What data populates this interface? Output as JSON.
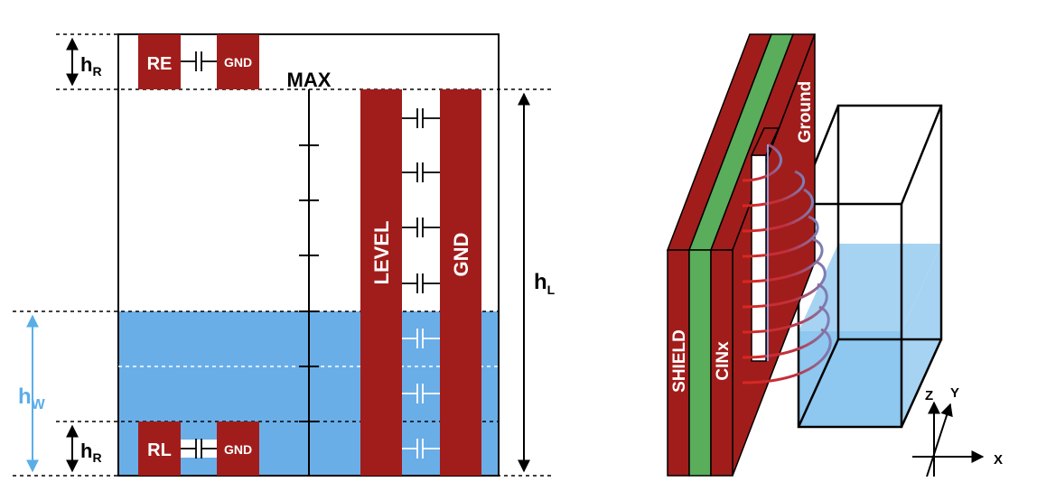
{
  "colors": {
    "electrode": "#a11d1b",
    "liquid": "#6aaee8",
    "liquid_light": "#a7d3f2",
    "cin": "#5aad5a",
    "outline": "#000000",
    "dim_blue": "#5aaee8",
    "white": "#ffffff"
  },
  "left": {
    "label_hr_top": {
      "main": "h",
      "sub": "R"
    },
    "label_hr_bottom": {
      "main": "h",
      "sub": "R"
    },
    "label_hw": {
      "main": "h",
      "sub": "W"
    },
    "label_hl": {
      "main": "h",
      "sub": "L"
    },
    "max_label": "MAX",
    "re_label": "RE",
    "re_gnd_label": "GND",
    "rl_label": "RL",
    "rl_gnd_label": "GND",
    "level_label": "LEVEL",
    "level_gnd_label": "GND"
  },
  "right": {
    "shield_label": "SHIELD",
    "cin_label": "CINx",
    "ground_label": "Ground",
    "axis_x": "X",
    "axis_y": "Y",
    "axis_z": "Z"
  }
}
